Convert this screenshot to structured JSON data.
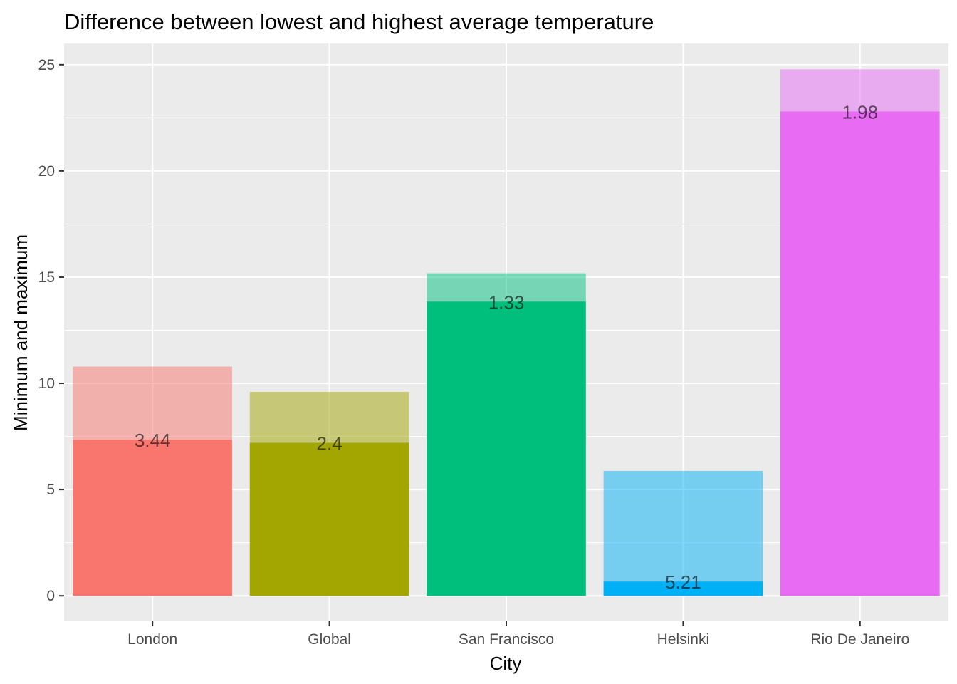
{
  "chart_data": {
    "type": "bar",
    "title": "Difference between lowest and highest average temperature",
    "xlabel": "City",
    "ylabel": "Minimum and maximum",
    "ylim": [
      -1.2,
      26
    ],
    "yticks": [
      0,
      5,
      10,
      15,
      20,
      25
    ],
    "grid": true,
    "legend": "none",
    "categories": [
      "London",
      "Global",
      "San Francisco",
      "Helsinki",
      "Rio De Janeiro"
    ],
    "colors": [
      "#F8766D",
      "#A3A500",
      "#00BF7D",
      "#00B0F6",
      "#E76BF3"
    ],
    "series": [
      {
        "values": [
          7.35,
          7.2,
          13.85,
          0.67,
          22.8
        ]
      },
      {
        "values": [
          10.79,
          9.6,
          15.18,
          5.88,
          24.78
        ]
      }
    ],
    "data_labels": [
      "3.44",
      "2.4",
      "1.33",
      "5.21",
      "1.98"
    ]
  }
}
